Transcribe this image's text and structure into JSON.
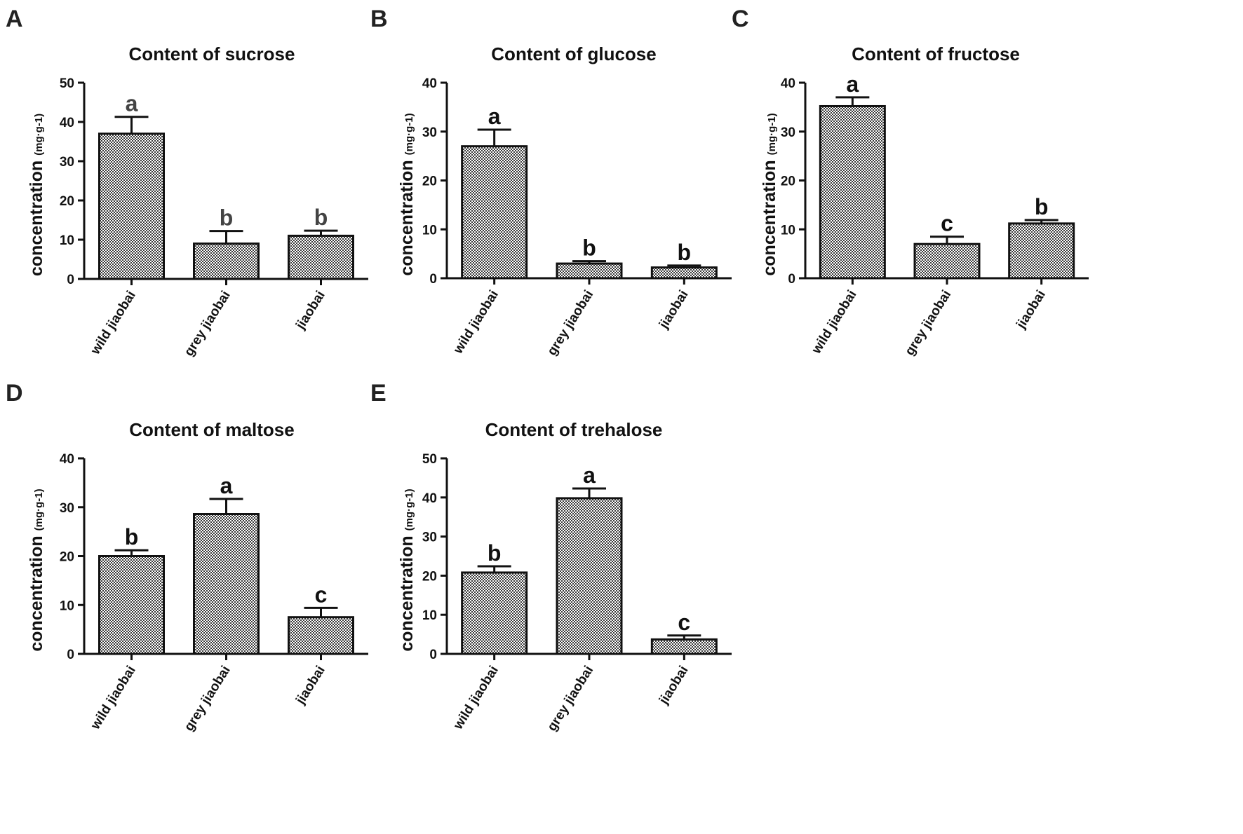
{
  "figure": {
    "categories_note": "Five sugar-content bar charts for three jiaobai types",
    "ylabel_main": "concentration",
    "ylabel_unit": "(mg·g-1)"
  },
  "colors": {
    "bar_fill_dark": "#3a3a3a",
    "bar_fill_light": "#ffffff",
    "axis": "#111111",
    "sig_dark": "#111111",
    "sig_grey": "#444444"
  },
  "chart_data": [
    {
      "panel": "A",
      "type": "bar",
      "title": "Content of sucrose",
      "xlabel": "",
      "ylabel": "concentration (mg·g-1)",
      "categories": [
        "wild jiaobai",
        "grey jiaobai",
        "jiaobai"
      ],
      "values": [
        37,
        9,
        11
      ],
      "errors": [
        4.3,
        3.2,
        1.3
      ],
      "significance": [
        "a",
        "b",
        "b"
      ],
      "ylim": [
        0,
        50
      ],
      "yticks": [
        0,
        10,
        20,
        30,
        40,
        50
      ]
    },
    {
      "panel": "B",
      "type": "bar",
      "title": "Content of glucose",
      "xlabel": "",
      "ylabel": "concentration (mg·g-1)",
      "categories": [
        "wild jiaobai",
        "grey jiaobai",
        "jiaobai"
      ],
      "values": [
        27,
        3,
        2.2
      ],
      "errors": [
        3.4,
        0.5,
        0.4
      ],
      "significance": [
        "a",
        "b",
        "b"
      ],
      "ylim": [
        0,
        40
      ],
      "yticks": [
        0,
        10,
        20,
        30,
        40
      ]
    },
    {
      "panel": "C",
      "type": "bar",
      "title": "Content of fructose",
      "xlabel": "",
      "ylabel": "concentration (mg·g-1)",
      "categories": [
        "wild jiaobai",
        "grey jiaobai",
        "jiaobai"
      ],
      "values": [
        35.2,
        7,
        11.2
      ],
      "errors": [
        1.8,
        1.5,
        0.7
      ],
      "significance": [
        "a",
        "c",
        "b"
      ],
      "ylim": [
        0,
        40
      ],
      "yticks": [
        0,
        10,
        20,
        30,
        40
      ]
    },
    {
      "panel": "D",
      "type": "bar",
      "title": "Content of maltose",
      "xlabel": "",
      "ylabel": "concentration (mg·g-1)",
      "categories": [
        "wild jiaobai",
        "grey jiaobai",
        "jiaobai"
      ],
      "values": [
        20,
        28.6,
        7.5
      ],
      "errors": [
        1.2,
        3.1,
        1.9
      ],
      "significance": [
        "b",
        "a",
        "c"
      ],
      "ylim": [
        0,
        40
      ],
      "yticks": [
        0,
        10,
        20,
        30,
        40
      ]
    },
    {
      "panel": "E",
      "type": "bar",
      "title": "Content of trehalose",
      "xlabel": "",
      "ylabel": "concentration (mg·g-1)",
      "categories": [
        "wild jiaobai",
        "grey jiaobai",
        "jiaobai"
      ],
      "values": [
        20.8,
        39.8,
        3.7
      ],
      "errors": [
        1.6,
        2.5,
        1.0
      ],
      "significance": [
        "b",
        "a",
        "c"
      ],
      "ylim": [
        0,
        50
      ],
      "yticks": [
        0,
        10,
        20,
        30,
        40,
        50
      ]
    }
  ]
}
